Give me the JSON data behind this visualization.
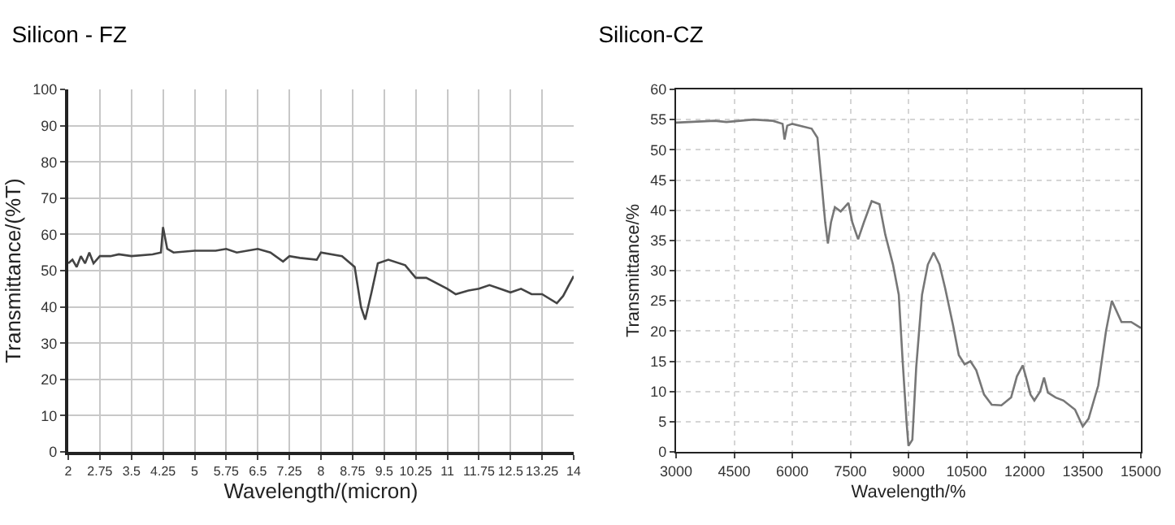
{
  "chart_data": [
    {
      "type": "line",
      "title": "Silicon - FZ",
      "xlabel": "Wavelength/(micron)",
      "ylabel": "Transmittance/(%T)",
      "xlim": [
        2,
        14
      ],
      "xticks": [
        2,
        2.75,
        3.5,
        4.25,
        5,
        5.75,
        6.5,
        7.25,
        8,
        8.75,
        9.5,
        10.25,
        11,
        11.75,
        12.5,
        13.25,
        14
      ],
      "ylim": [
        0,
        100
      ],
      "yticks": [
        0,
        10,
        20,
        30,
        40,
        50,
        60,
        70,
        80,
        90,
        100
      ],
      "grid": true,
      "x": [
        2,
        2.1,
        2.2,
        2.3,
        2.4,
        2.5,
        2.6,
        2.75,
        3,
        3.2,
        3.5,
        4,
        4.2,
        4.25,
        4.35,
        4.5,
        5,
        5.5,
        5.75,
        6,
        6.5,
        6.8,
        7.1,
        7.25,
        7.5,
        7.9,
        8,
        8.5,
        8.8,
        8.95,
        9.05,
        9.2,
        9.35,
        9.6,
        10,
        10.25,
        10.5,
        11,
        11.2,
        11.5,
        11.75,
        12,
        12.25,
        12.5,
        12.75,
        13,
        13.25,
        13.6,
        13.75,
        14
      ],
      "series": [
        {
          "color": "#444444",
          "values": [
            52,
            53,
            51,
            54,
            52,
            55,
            52,
            54,
            54,
            54.5,
            54,
            54.5,
            55,
            62,
            56,
            55,
            55.5,
            55.5,
            56,
            55,
            56,
            55,
            52.5,
            54,
            53.5,
            53,
            55,
            54,
            51,
            40,
            36.5,
            44,
            52,
            53,
            51.5,
            48,
            48,
            45,
            43.5,
            44.5,
            45,
            46,
            45,
            44,
            45,
            43.5,
            43.5,
            41,
            43,
            48.5
          ]
        }
      ]
    },
    {
      "type": "line",
      "title": "Silicon-CZ",
      "xlabel": "Wavelength/%",
      "ylabel": "Transmittance/%",
      "xlim": [
        3000,
        15000
      ],
      "xticks": [
        3000,
        4500,
        6000,
        7500,
        9000,
        10500,
        12000,
        13500,
        15000
      ],
      "ylim": [
        0,
        60
      ],
      "yticks": [
        0,
        5,
        10,
        15,
        20,
        25,
        30,
        35,
        40,
        45,
        50,
        55,
        60
      ],
      "grid": true,
      "x": [
        3000,
        4000,
        4300,
        5000,
        5500,
        5750,
        5800,
        5870,
        6000,
        6500,
        6650,
        6750,
        6850,
        6920,
        7000,
        7100,
        7250,
        7450,
        7550,
        7700,
        7850,
        8050,
        8250,
        8400,
        8600,
        8750,
        8850,
        8950,
        9000,
        9100,
        9200,
        9350,
        9500,
        9650,
        9800,
        9950,
        10150,
        10300,
        10450,
        10600,
        10750,
        10950,
        11150,
        11400,
        11650,
        11800,
        11950,
        12050,
        12150,
        12250,
        12400,
        12500,
        12600,
        12800,
        13000,
        13300,
        13500,
        13650,
        13900,
        14100,
        14250,
        14500,
        14750,
        15000
      ],
      "series": [
        {
          "color": "#777777",
          "values": [
            54.5,
            54.8,
            54.6,
            55,
            54.8,
            54.3,
            51.7,
            54,
            54.3,
            53.5,
            52,
            45,
            38,
            34.5,
            38,
            40.5,
            39.8,
            41.2,
            38,
            35.2,
            38,
            41.5,
            41,
            36,
            31,
            26,
            15,
            5,
            1,
            2,
            14,
            26,
            31,
            33,
            31,
            27,
            21,
            16,
            14.5,
            15,
            13.5,
            9.5,
            7.8,
            7.7,
            9,
            12.5,
            14.3,
            12,
            9.5,
            8.5,
            10,
            12.3,
            9.8,
            9,
            8.5,
            7,
            4.2,
            5.5,
            11,
            20,
            25,
            21.5,
            21.5,
            20.5
          ]
        }
      ]
    }
  ]
}
